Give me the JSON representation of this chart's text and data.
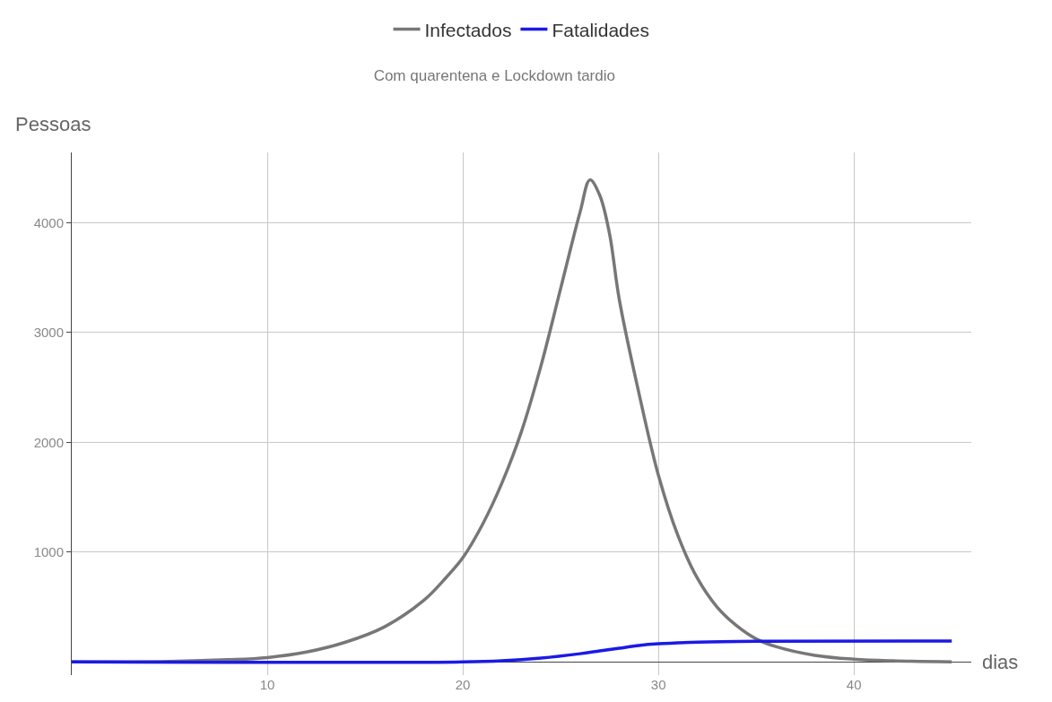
{
  "chart_data": {
    "type": "line",
    "subtitle": "Com quarentena e Lockdown tardio",
    "xlabel": "dias",
    "ylabel": "Pessoas",
    "xlim": [
      0,
      46
    ],
    "ylim": [
      -120,
      4640
    ],
    "xticks": [
      10,
      20,
      30,
      40
    ],
    "yticks": [
      1000,
      2000,
      3000,
      4000
    ],
    "grid": true,
    "legend": "top",
    "marker": "none",
    "line_style": "solid",
    "series": [
      {
        "name": "Infectados",
        "color": "#777777",
        "x": [
          0,
          5,
          8,
          10,
          12,
          14,
          16,
          18,
          19,
          20,
          21,
          22,
          23,
          24,
          25,
          26,
          26.5,
          27,
          27.5,
          28,
          29,
          30,
          31,
          32,
          33,
          34,
          35,
          36,
          38,
          40,
          42,
          45
        ],
        "values": [
          0,
          5,
          20,
          40,
          90,
          180,
          320,
          560,
          740,
          950,
          1250,
          1630,
          2100,
          2700,
          3400,
          4100,
          4390,
          4250,
          3900,
          3300,
          2450,
          1700,
          1150,
          760,
          500,
          330,
          210,
          140,
          60,
          25,
          10,
          0
        ]
      },
      {
        "name": "Fatalidades",
        "color": "#1a1ae6",
        "x": [
          0,
          20,
          22,
          24,
          26,
          27,
          28,
          29,
          30,
          32,
          35,
          45
        ],
        "values": [
          0,
          0,
          10,
          35,
          75,
          100,
          125,
          150,
          165,
          180,
          188,
          190
        ]
      }
    ]
  }
}
